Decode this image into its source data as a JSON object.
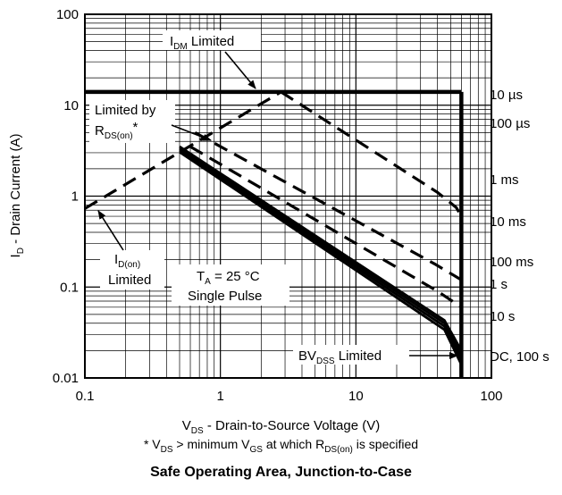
{
  "chart_data": {
    "type": "line",
    "title": "Safe Operating Area, Junction-to-Case",
    "xlabel": {
      "main": "V",
      "sub": "DS",
      "rest": " - Drain-to-Source Voltage (V)"
    },
    "ylabel": {
      "main": "I",
      "sub": "D",
      "rest": " - Drain Current (A)"
    },
    "footnote": {
      "p1": "* V",
      "s1": "DS",
      "p2": " > minimum V",
      "s2": "GS",
      "p3": " at which R",
      "s3": "DS(on)",
      "p4": " is specified"
    },
    "x_scale": "log",
    "y_scale": "log",
    "xlim": [
      0.1,
      100
    ],
    "ylim": [
      0.01,
      100
    ],
    "x_ticks": [
      "0.1",
      "1",
      "10",
      "100"
    ],
    "y_ticks": [
      "0.01",
      "0.1",
      "1",
      "10",
      "100"
    ],
    "grid": true,
    "series": [
      {
        "name": "10 µs",
        "style": "dashed",
        "points": [
          [
            0.1,
            0.73
          ],
          [
            2.8,
            14
          ],
          [
            60,
            14
          ]
        ]
      },
      {
        "name": "100 µs",
        "style": "dashed",
        "points": [
          [
            2.8,
            14
          ],
          [
            40,
            1.1
          ],
          [
            55,
            0.75
          ],
          [
            60,
            0.6
          ]
        ]
      },
      {
        "name": "1 ms",
        "style": "dashed",
        "points": [
          [
            0.65,
            5.0
          ],
          [
            38,
            0.18
          ],
          [
            60,
            0.12
          ]
        ]
      },
      {
        "name": "10 ms",
        "style": "dashed",
        "points": [
          [
            0.6,
            3.5
          ],
          [
            40,
            0.09
          ],
          [
            60,
            0.06
          ]
        ]
      },
      {
        "name": "100 ms",
        "style": "solid",
        "points": [
          [
            0.5,
            3.5
          ],
          [
            45,
            0.043
          ],
          [
            60,
            0.02
          ]
        ]
      },
      {
        "name": "1 s",
        "style": "solid",
        "points": [
          [
            0.5,
            3.35
          ],
          [
            45,
            0.04
          ],
          [
            60,
            0.018
          ]
        ]
      },
      {
        "name": "10 s",
        "style": "solid",
        "points": [
          [
            0.5,
            3.2
          ],
          [
            45,
            0.037
          ],
          [
            60,
            0.016
          ]
        ]
      },
      {
        "name": "DC, 100 s",
        "style": "solid",
        "points": [
          [
            0.5,
            3.05
          ],
          [
            45,
            0.034
          ],
          [
            60,
            0.014
          ]
        ]
      }
    ],
    "bv_dss_line": {
      "x": 60,
      "y": [
        0.01,
        14
      ]
    },
    "idm_line": {
      "y": 14,
      "x": [
        0.1,
        60
      ]
    },
    "annotations": {
      "idm": {
        "main": "I",
        "sub": "DM",
        "rest": " Limited"
      },
      "rds": {
        "line1": "Limited by",
        "main": "R",
        "sub": "DS(on)",
        "rest": "*"
      },
      "idon": {
        "main": "I",
        "sub": "D(on)",
        "line2": "Limited"
      },
      "ta": {
        "main": "T",
        "sub": "A",
        "rest": " = 25 °C",
        "line2": "Single Pulse"
      },
      "bv": {
        "main": "BV",
        "sub": "DSS",
        "rest": " Limited"
      }
    },
    "right_labels": [
      "10 µs",
      "100 µs",
      "1 ms",
      "10 ms",
      "100 ms",
      "1 s",
      "10 s",
      "DC, 100 s"
    ]
  }
}
